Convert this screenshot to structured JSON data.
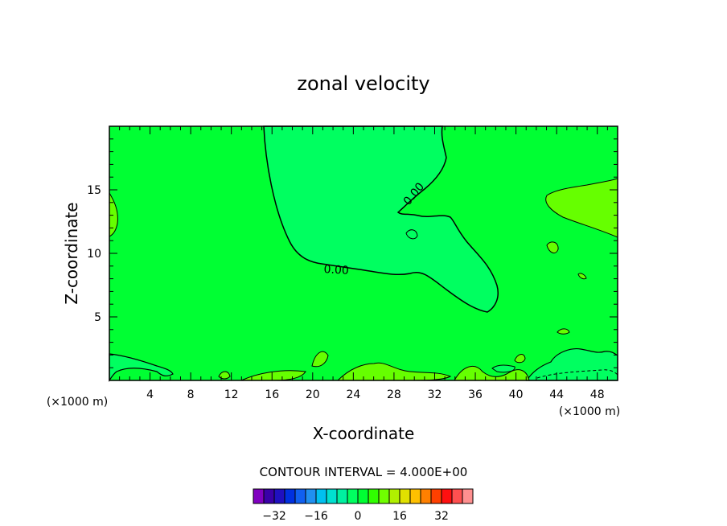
{
  "chart_data": {
    "type": "contour",
    "title": "zonal velocity",
    "xlabel": "X-coordinate",
    "ylabel": "Z-coordinate",
    "x_unit": "(×1000 m)",
    "x_unit_right": "(×1000 m)",
    "xlim": [
      0,
      50
    ],
    "ylim": [
      0,
      20
    ],
    "x_ticks": [
      4,
      8,
      12,
      16,
      20,
      24,
      28,
      32,
      36,
      40,
      44,
      48
    ],
    "y_ticks": [
      5,
      10,
      15
    ],
    "contour_interval_text": "CONTOUR INTERVAL = 4.000E+00",
    "contour_labels": [
      "0.00",
      "0.00"
    ],
    "background_fill": "#00ff33",
    "colorbar": {
      "colors": [
        "#8000c0",
        "#3a00a8",
        "#2010c0",
        "#0030e0",
        "#1060f0",
        "#2090f0",
        "#00c0f0",
        "#00e0d0",
        "#00f0a0",
        "#00ff60",
        "#00ff33",
        "#30ff00",
        "#70ff00",
        "#b0f000",
        "#e0e000",
        "#ffc000",
        "#ff8000",
        "#ff4000",
        "#ff1010",
        "#ff5050",
        "#ff9090"
      ],
      "tick_labels": [
        "-32",
        "-16",
        "0",
        "16",
        "32"
      ],
      "tick_values": [
        -32,
        -16,
        0,
        16,
        32
      ]
    },
    "regions": [
      {
        "name": "negative-core",
        "fill": "#00ff60",
        "description_level": "< 0"
      },
      {
        "name": "positive-patch",
        "fill": "#66ff00",
        "description_level": "> 0"
      }
    ]
  }
}
